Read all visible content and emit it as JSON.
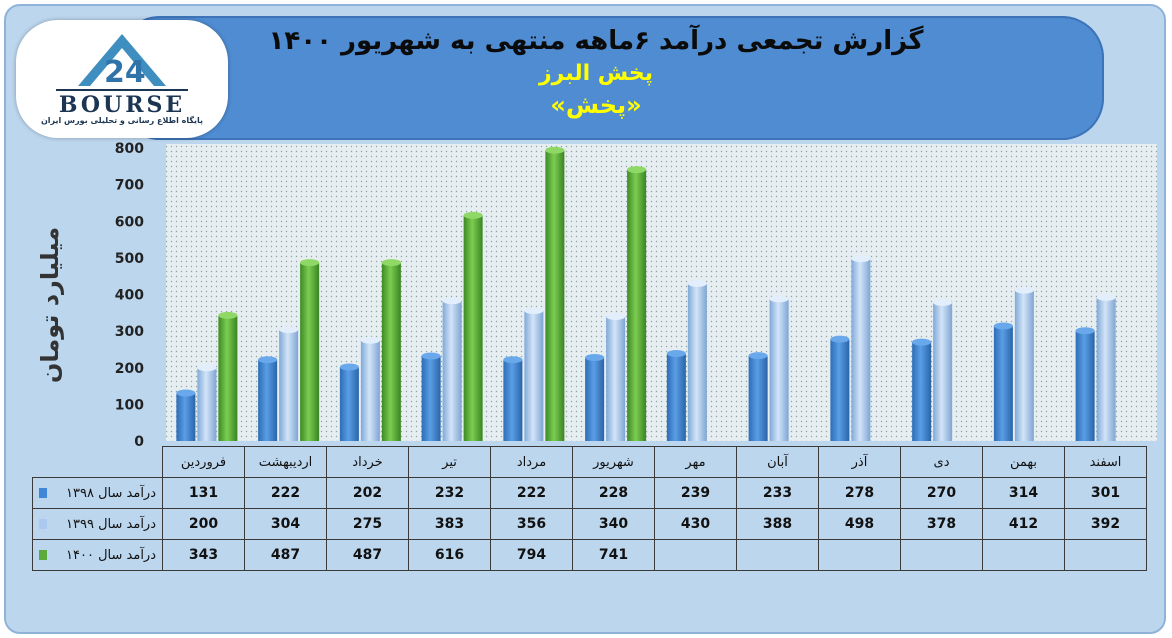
{
  "header": {
    "title": "گزارش تجمعی درآمد ۶ماهه منتهی به شهریور ۱۴۰۰",
    "subtitle": "پخش البرز",
    "subtitle2": "«پخش»"
  },
  "logo": {
    "word": "BOURSE",
    "caption": "پایگاه اطلاع رسانی و تحلیلی بورس ایران"
  },
  "colors": {
    "series_1398": "#3f87d6",
    "series_1399": "#a9c9ef",
    "series_1400": "#5aaa3c",
    "header_bg": "#4f8cd2",
    "frame_bg": "#bcd6ee"
  },
  "chart_data": {
    "type": "bar",
    "title": "گزارش تجمعی درآمد ۶ماهه منتهی به شهریور ۱۴۰۰",
    "ylabel": "میلیارد تومان",
    "xlabel": "",
    "ylim": [
      0,
      800
    ],
    "yticks": [
      "0",
      "100",
      "200",
      "300",
      "400",
      "500",
      "600",
      "700",
      "800"
    ],
    "grid": false,
    "categories": [
      "فروردین",
      "اردیبهشت",
      "خرداد",
      "تیر",
      "مرداد",
      "شهریور",
      "مهر",
      "آبان",
      "آذر",
      "دی",
      "بهمن",
      "اسفند"
    ],
    "series": [
      {
        "name": "درآمد سال ۱۳۹۸",
        "color": "#3f87d6",
        "values": [
          131,
          222,
          202,
          232,
          222,
          228,
          239,
          233,
          278,
          270,
          314,
          301
        ]
      },
      {
        "name": "درآمد سال ۱۳۹۹",
        "color": "#a9c9ef",
        "values": [
          200,
          304,
          275,
          383,
          356,
          340,
          430,
          388,
          498,
          378,
          412,
          392
        ]
      },
      {
        "name": "درآمد سال ۱۴۰۰",
        "color": "#5aaa3c",
        "values": [
          343,
          487,
          487,
          616,
          794,
          741,
          null,
          null,
          null,
          null,
          null,
          null
        ]
      }
    ]
  }
}
